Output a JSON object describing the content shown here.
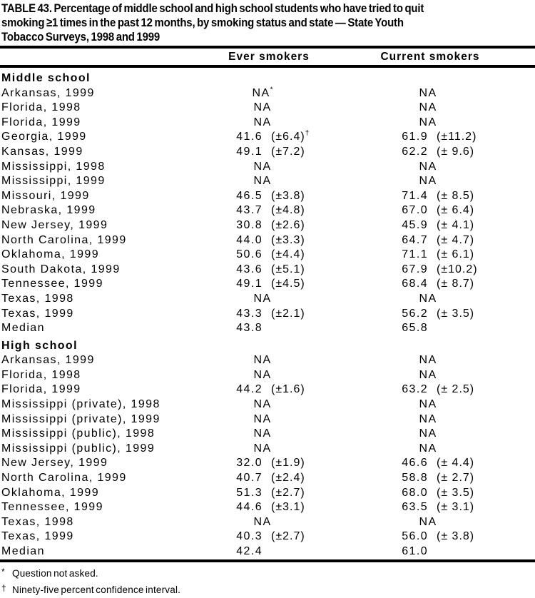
{
  "page": {
    "background": "#ffffff",
    "text_color": "#000000",
    "rule_color": "#000000"
  },
  "title_lines": [
    "TABLE 43. Percentage of middle school and high school students who have tried to quit",
    "smoking ≥1 times in the past 12 months, by smoking status and state — State Youth",
    "Tobacco Surveys, 1998 and 1999"
  ],
  "columns": {
    "ever": "Ever smokers",
    "current": "Current smokers"
  },
  "na_label": "NA",
  "sections": [
    {
      "label": "Middle school",
      "rows": [
        {
          "label": "Arkansas, 1999",
          "ever": {
            "v": "NA",
            "sup": "*"
          },
          "current": {
            "v": "NA"
          }
        },
        {
          "label": "Florida, 1998",
          "ever": {
            "v": "NA"
          },
          "current": {
            "v": "NA"
          }
        },
        {
          "label": "Florida, 1999",
          "ever": {
            "v": "NA"
          },
          "current": {
            "v": "NA"
          }
        },
        {
          "label": "Georgia, 1999",
          "ever": {
            "v": "41.6",
            "ci": "(±6.4)",
            "sup": "†"
          },
          "current": {
            "v": "61.9",
            "ci": "(±11.2)"
          }
        },
        {
          "label": "Kansas, 1999",
          "ever": {
            "v": "49.1",
            "ci": "(±7.2)"
          },
          "current": {
            "v": "62.2",
            "ci": "(± 9.6)"
          }
        },
        {
          "label": "Mississippi, 1998",
          "ever": {
            "v": "NA"
          },
          "current": {
            "v": "NA"
          }
        },
        {
          "label": "Mississippi, 1999",
          "ever": {
            "v": "NA"
          },
          "current": {
            "v": "NA"
          }
        },
        {
          "label": "Missouri, 1999",
          "ever": {
            "v": "46.5",
            "ci": "(±3.8)"
          },
          "current": {
            "v": "71.4",
            "ci": "(± 8.5)"
          }
        },
        {
          "label": "Nebraska, 1999",
          "ever": {
            "v": "43.7",
            "ci": "(±4.8)"
          },
          "current": {
            "v": "67.0",
            "ci": "(± 6.4)"
          }
        },
        {
          "label": "New Jersey, 1999",
          "ever": {
            "v": "30.8",
            "ci": "(±2.6)"
          },
          "current": {
            "v": "45.9",
            "ci": "(± 4.1)"
          }
        },
        {
          "label": "North Carolina, 1999",
          "ever": {
            "v": "44.0",
            "ci": "(±3.3)"
          },
          "current": {
            "v": "64.7",
            "ci": "(± 4.7)"
          }
        },
        {
          "label": "Oklahoma, 1999",
          "ever": {
            "v": "50.6",
            "ci": "(±4.4)"
          },
          "current": {
            "v": "71.1",
            "ci": "(± 6.1)"
          }
        },
        {
          "label": "South Dakota, 1999",
          "ever": {
            "v": "43.6",
            "ci": "(±5.1)"
          },
          "current": {
            "v": "67.9",
            "ci": "(±10.2)"
          }
        },
        {
          "label": "Tennessee, 1999",
          "ever": {
            "v": "49.1",
            "ci": "(±4.5)"
          },
          "current": {
            "v": "68.4",
            "ci": "(± 8.7)"
          }
        },
        {
          "label": "Texas, 1998",
          "ever": {
            "v": "NA"
          },
          "current": {
            "v": "NA"
          }
        },
        {
          "label": "Texas, 1999",
          "ever": {
            "v": "43.3",
            "ci": "(±2.1)"
          },
          "current": {
            "v": "56.2",
            "ci": "(± 3.5)"
          }
        },
        {
          "label": "Median",
          "ever": {
            "v": "43.8"
          },
          "current": {
            "v": "65.8"
          }
        }
      ]
    },
    {
      "label": "High school",
      "rows": [
        {
          "label": "Arkansas, 1999",
          "ever": {
            "v": "NA"
          },
          "current": {
            "v": "NA"
          }
        },
        {
          "label": "Florida, 1998",
          "ever": {
            "v": "NA"
          },
          "current": {
            "v": "NA"
          }
        },
        {
          "label": "Florida, 1999",
          "ever": {
            "v": "44.2",
            "ci": "(±1.6)"
          },
          "current": {
            "v": "63.2",
            "ci": "(± 2.5)"
          }
        },
        {
          "label": "Mississippi (private), 1998",
          "ever": {
            "v": "NA"
          },
          "current": {
            "v": "NA"
          }
        },
        {
          "label": "Mississippi (private), 1999",
          "ever": {
            "v": "NA"
          },
          "current": {
            "v": "NA"
          }
        },
        {
          "label": "Mississippi (public), 1998",
          "ever": {
            "v": "NA"
          },
          "current": {
            "v": "NA"
          }
        },
        {
          "label": "Mississippi (public), 1999",
          "ever": {
            "v": "NA"
          },
          "current": {
            "v": "NA"
          }
        },
        {
          "label": "New Jersey, 1999",
          "ever": {
            "v": "32.0",
            "ci": "(±1.9)"
          },
          "current": {
            "v": "46.6",
            "ci": "(± 4.4)"
          }
        },
        {
          "label": "North Carolina, 1999",
          "ever": {
            "v": "40.7",
            "ci": "(±2.4)"
          },
          "current": {
            "v": "58.8",
            "ci": "(± 2.7)"
          }
        },
        {
          "label": "Oklahoma, 1999",
          "ever": {
            "v": "51.3",
            "ci": "(±2.7)"
          },
          "current": {
            "v": "68.0",
            "ci": "(± 3.5)"
          }
        },
        {
          "label": "Tennessee, 1999",
          "ever": {
            "v": "44.6",
            "ci": "(±3.1)"
          },
          "current": {
            "v": "63.5",
            "ci": "(± 3.1)"
          }
        },
        {
          "label": "Texas, 1998",
          "ever": {
            "v": "NA"
          },
          "current": {
            "v": "NA"
          }
        },
        {
          "label": "Texas, 1999",
          "ever": {
            "v": "40.3",
            "ci": "(±2.7)"
          },
          "current": {
            "v": "56.0",
            "ci": "(± 3.8)"
          }
        },
        {
          "label": "Median",
          "ever": {
            "v": "42.4"
          },
          "current": {
            "v": "61.0"
          }
        }
      ]
    }
  ],
  "footnotes": [
    {
      "marker": "*",
      "text": "Question not asked."
    },
    {
      "marker": "†",
      "text": "Ninety-five percent confidence interval."
    }
  ]
}
